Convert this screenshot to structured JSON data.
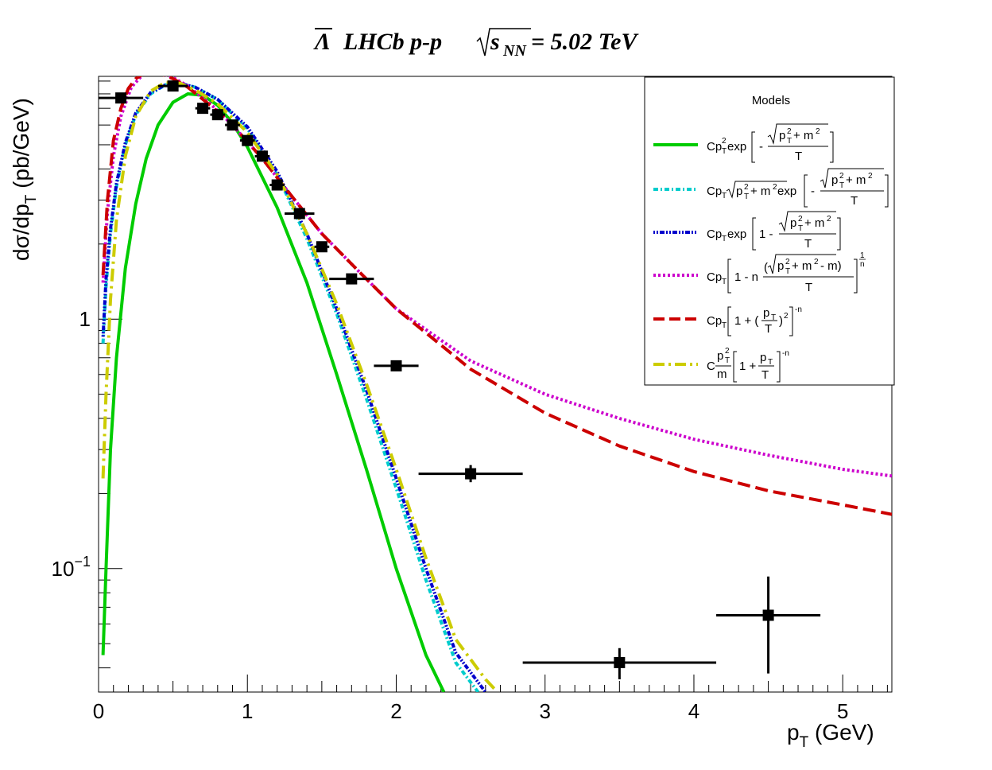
{
  "chart_data": {
    "type": "scatter",
    "title": {
      "bar_symbol": "Λ",
      "main": "LHCb p-p",
      "sqrt_s": "s",
      "sqrt_s_sub": "NN",
      "energy": "= 5.02 TeV"
    },
    "xlabel": {
      "p": "p",
      "sub": "T",
      "unit": " (GeV)"
    },
    "ylabel": {
      "main": "dσ/dp",
      "sub": "T",
      "unit": " (pb/GeV)"
    },
    "xlim": [
      0,
      5.33
    ],
    "ylim": [
      0.032,
      9.4
    ],
    "yscale": "log",
    "grid": false,
    "legend_position": "top-right",
    "legend_title": "Models",
    "x_ticks": [
      "0",
      "1",
      "2",
      "3",
      "4",
      "5"
    ],
    "y_ticks": [
      {
        "base": "1",
        "exp": "",
        "value": 1
      },
      {
        "base": "10",
        "exp": "−1",
        "value": 0.1
      }
    ],
    "data_points": {
      "x": [
        0.15,
        0.5,
        0.7,
        0.8,
        0.9,
        1.0,
        1.1,
        1.2,
        1.35,
        1.5,
        1.7,
        2.0,
        2.5,
        3.5,
        4.5
      ],
      "y": [
        7.7,
        8.6,
        7.0,
        6.6,
        6.0,
        5.2,
        4.5,
        3.45,
        2.65,
        1.95,
        1.45,
        0.65,
        0.24,
        0.042,
        0.065
      ],
      "xerr": [
        0.15,
        0.1,
        0.05,
        0.05,
        0.05,
        0.05,
        0.05,
        0.05,
        0.1,
        0.05,
        0.15,
        0.15,
        0.35,
        0.65,
        0.35
      ],
      "yerr_lo": [
        0,
        0,
        0,
        0,
        0,
        0,
        0,
        0,
        0,
        0,
        0,
        0,
        0.018,
        0.006,
        0.027
      ],
      "yerr_hi": [
        0,
        0,
        0,
        0,
        0,
        0,
        0,
        0,
        0,
        0,
        0,
        0,
        0.02,
        0.006,
        0.028
      ]
    },
    "series": [
      {
        "color": "#00cc00",
        "dash": "solid",
        "x": [
          0.03,
          0.05,
          0.08,
          0.12,
          0.18,
          0.25,
          0.32,
          0.4,
          0.5,
          0.6,
          0.7,
          0.8,
          0.9,
          1.0,
          1.2,
          1.4,
          1.6,
          1.8,
          2.0,
          2.2,
          2.32
        ],
        "y": [
          0.045,
          0.1,
          0.3,
          0.7,
          1.6,
          2.9,
          4.4,
          6.0,
          7.4,
          8.0,
          7.9,
          7.2,
          6.1,
          4.9,
          2.8,
          1.4,
          0.6,
          0.25,
          0.1,
          0.045,
          0.032
        ]
      },
      {
        "color": "#00cccc",
        "dash": "dashdot",
        "x": [
          0.03,
          0.05,
          0.08,
          0.12,
          0.18,
          0.25,
          0.35,
          0.45,
          0.55,
          0.65,
          0.8,
          1.0,
          1.2,
          1.4,
          1.6,
          1.8,
          2.0,
          2.2,
          2.4,
          2.55
        ],
        "y": [
          0.8,
          1.35,
          2.2,
          3.4,
          5.0,
          6.6,
          8.0,
          8.7,
          8.8,
          8.5,
          7.6,
          5.8,
          3.8,
          2.1,
          1.05,
          0.48,
          0.21,
          0.09,
          0.042,
          0.032
        ]
      },
      {
        "color": "#0000cc",
        "dash": "dotdense",
        "x": [
          0.03,
          0.05,
          0.08,
          0.12,
          0.18,
          0.25,
          0.35,
          0.45,
          0.55,
          0.65,
          0.8,
          1.0,
          1.2,
          1.4,
          1.6,
          1.8,
          2.0,
          2.2,
          2.4,
          2.6
        ],
        "y": [
          0.85,
          1.45,
          2.3,
          3.5,
          5.1,
          6.7,
          8.1,
          8.7,
          8.8,
          8.5,
          7.6,
          5.9,
          3.9,
          2.2,
          1.1,
          0.52,
          0.23,
          0.1,
          0.046,
          0.032
        ]
      },
      {
        "color": "#cc00cc",
        "dash": "dotted",
        "x": [
          0.03,
          0.06,
          0.1,
          0.15,
          0.22,
          0.3,
          0.4,
          0.5,
          0.6,
          0.75,
          0.9,
          1.1,
          1.3,
          1.5,
          1.75,
          2.0,
          2.5,
          3.0,
          3.5,
          4.0,
          4.5,
          5.0,
          5.33
        ],
        "y": [
          1.4,
          2.7,
          4.5,
          6.5,
          8.5,
          9.6,
          9.8,
          9.3,
          8.6,
          7.3,
          6.0,
          4.4,
          3.1,
          2.2,
          1.55,
          1.1,
          0.68,
          0.5,
          0.4,
          0.33,
          0.285,
          0.25,
          0.235
        ]
      },
      {
        "color": "#cc0000",
        "dash": "dashed",
        "x": [
          0.03,
          0.06,
          0.1,
          0.15,
          0.2,
          0.25,
          0.3,
          0.4,
          0.5,
          0.6,
          0.75,
          0.9,
          1.1,
          1.3,
          1.5,
          1.75,
          2.0,
          2.5,
          3.0,
          3.5,
          4.0,
          4.5,
          5.0,
          5.33
        ],
        "y": [
          1.5,
          3.0,
          5.2,
          7.0,
          8.4,
          9.2,
          9.6,
          9.7,
          9.2,
          8.5,
          7.2,
          6.0,
          4.4,
          3.1,
          2.2,
          1.55,
          1.1,
          0.63,
          0.42,
          0.31,
          0.245,
          0.205,
          0.18,
          0.165
        ]
      },
      {
        "color": "#cccc00",
        "dash": "longdashdot",
        "x": [
          0.03,
          0.05,
          0.08,
          0.12,
          0.18,
          0.25,
          0.35,
          0.45,
          0.55,
          0.65,
          0.8,
          1.0,
          1.2,
          1.4,
          1.6,
          1.8,
          2.0,
          2.2,
          2.4,
          2.6,
          2.68
        ],
        "y": [
          0.23,
          0.5,
          1.2,
          2.5,
          4.5,
          6.5,
          8.2,
          8.9,
          8.8,
          8.3,
          7.3,
          5.6,
          3.8,
          2.2,
          1.15,
          0.55,
          0.25,
          0.11,
          0.052,
          0.036,
          0.032
        ]
      }
    ]
  }
}
